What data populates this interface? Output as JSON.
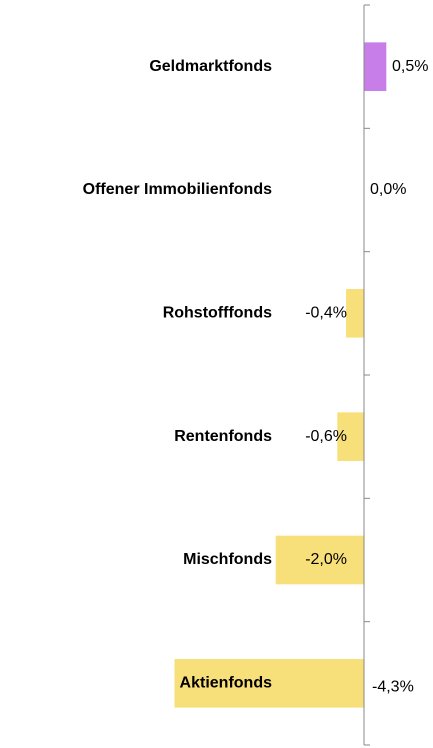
{
  "chart_data": {
    "type": "bar",
    "orientation": "horizontal",
    "categories": [
      "Geldmarktfonds",
      "Offener Immobilienfonds",
      "Rohstofffonds",
      "Rentenfonds",
      "Mischfonds",
      "Aktienfonds"
    ],
    "series": [
      {
        "values": [
          0.5,
          0.0,
          -0.4,
          -0.6,
          -2.0,
          -4.3
        ],
        "value_labels": [
          "0,5%",
          "0,0%",
          "-0,4%",
          "-0,6%",
          "-2,0%",
          "-4,3%"
        ],
        "colors": [
          "#c77ee8",
          "#f7df7a",
          "#f7df7a",
          "#f7df7a",
          "#f7df7a",
          "#f7df7a"
        ]
      }
    ],
    "xlim": [
      -4.5,
      1.5
    ]
  }
}
